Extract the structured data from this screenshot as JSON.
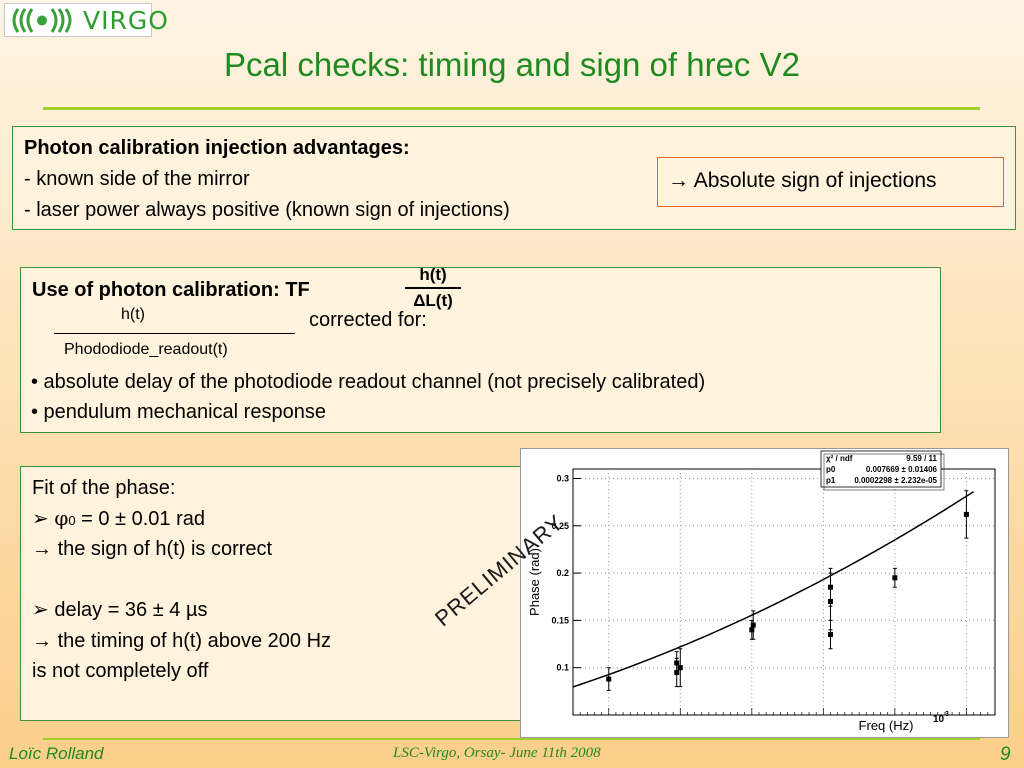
{
  "logo": {
    "text": "VIRGO"
  },
  "slide": {
    "title": "Pcal checks: timing and sign of hrec V2"
  },
  "box1": {
    "heading": "Photon calibration injection advantages:",
    "lines": [
      "- known side of the mirror",
      "- laser power always positive (known sign of injections)"
    ],
    "callout": "Absolute sign of injections"
  },
  "box2": {
    "heading": "Use of photon calibration: TF",
    "tf_num": "h(t)",
    "tf_den": "ΔL(t)",
    "frac_num": "h(t)",
    "frac_den": "Phododiode_readout(t)",
    "corrected": "corrected for:",
    "bullets": [
      "• absolute delay of the photodiode readout channel (not precisely calibrated)",
      "• pendulum mechanical response"
    ]
  },
  "box3": {
    "line1": "Fit of the phase:",
    "phi_sym": "φ",
    "phi_sub": "0",
    "phi_rest": " = 0 ± 0.01 rad",
    "line3": "the sign of h(t) is correct",
    "line4": "delay = 36 ± 4 µs",
    "line5": "the timing of h(t) above 200 Hz",
    "line6": "is not completely off"
  },
  "preliminary": "PRELIMINARY",
  "chart_data": {
    "type": "scatter",
    "xlabel": "Freq (Hz)",
    "ylabel": "Phase (rad)",
    "x_exponent_label": "10",
    "x_exponent_power": "3",
    "ylim": [
      0.05,
      0.31
    ],
    "yticks": [
      "0.1",
      "0.15",
      "0.2",
      "0.25",
      "0.3"
    ],
    "fit_box": [
      [
        "χ² / ndf",
        "9.59 / 11"
      ],
      [
        "p0",
        "0.007669 ± 0.01406"
      ],
      [
        "p1",
        "0.0002298 ± 2.232e-05"
      ]
    ],
    "points": [
      {
        "x": 100,
        "y": 0.088,
        "err": 0.012
      },
      {
        "x": 195,
        "y": 0.095,
        "err": 0.015
      },
      {
        "x": 195,
        "y": 0.105,
        "err": 0.012
      },
      {
        "x": 200,
        "y": 0.1,
        "err": 0.02
      },
      {
        "x": 300,
        "y": 0.14,
        "err": 0.01
      },
      {
        "x": 302,
        "y": 0.145,
        "err": 0.015
      },
      {
        "x": 410,
        "y": 0.185,
        "err": 0.02
      },
      {
        "x": 410,
        "y": 0.17,
        "err": 0.03
      },
      {
        "x": 410,
        "y": 0.135,
        "err": 0.015
      },
      {
        "x": 500,
        "y": 0.195,
        "err": 0.01
      },
      {
        "x": 600,
        "y": 0.262,
        "err": 0.025
      }
    ],
    "fit": {
      "p0": 0.007669,
      "p1": 0.0002298,
      "xrange": [
        50,
        610
      ]
    },
    "grid": true
  },
  "footer": {
    "name": "Loïc Rolland",
    "event": "LSC-Virgo, Orsay-   June 11th  2008",
    "page": "9"
  }
}
